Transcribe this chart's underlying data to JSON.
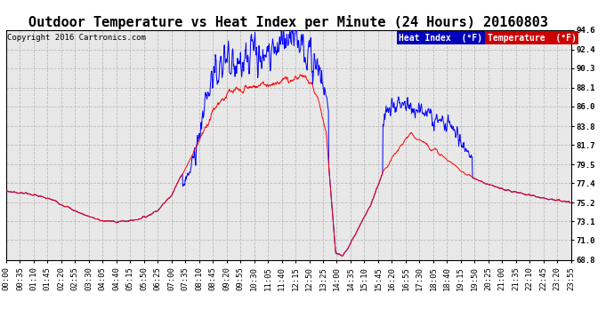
{
  "title": "Outdoor Temperature vs Heat Index per Minute (24 Hours) 20160803",
  "copyright": "Copyright 2016 Cartronics.com",
  "legend_heat_label": "Heat Index  (°F)",
  "legend_temp_label": "Temperature  (°F)",
  "legend_heat_bg": "#0000bb",
  "legend_temp_bg": "#cc0000",
  "y_min": 68.8,
  "y_max": 94.6,
  "y_ticks": [
    68.8,
    71.0,
    73.1,
    75.2,
    77.4,
    79.5,
    81.7,
    83.8,
    86.0,
    88.1,
    90.3,
    92.4,
    94.6
  ],
  "background_color": "#ffffff",
  "plot_bg_color": "#e8e8e8",
  "grid_color": "#bbbbbb",
  "title_fontsize": 11,
  "tick_fontsize": 6.5,
  "x_tick_labels": [
    "00:00",
    "00:35",
    "01:10",
    "01:45",
    "02:20",
    "02:55",
    "03:30",
    "04:05",
    "04:40",
    "05:15",
    "05:50",
    "06:25",
    "07:00",
    "07:35",
    "08:10",
    "08:45",
    "09:20",
    "09:55",
    "10:30",
    "11:05",
    "11:40",
    "12:15",
    "12:50",
    "13:25",
    "14:00",
    "14:35",
    "15:10",
    "15:45",
    "16:20",
    "16:55",
    "17:30",
    "18:05",
    "18:40",
    "19:15",
    "19:50",
    "20:25",
    "21:00",
    "21:35",
    "22:10",
    "22:45",
    "23:20",
    "23:55"
  ],
  "n_minutes": 1440
}
